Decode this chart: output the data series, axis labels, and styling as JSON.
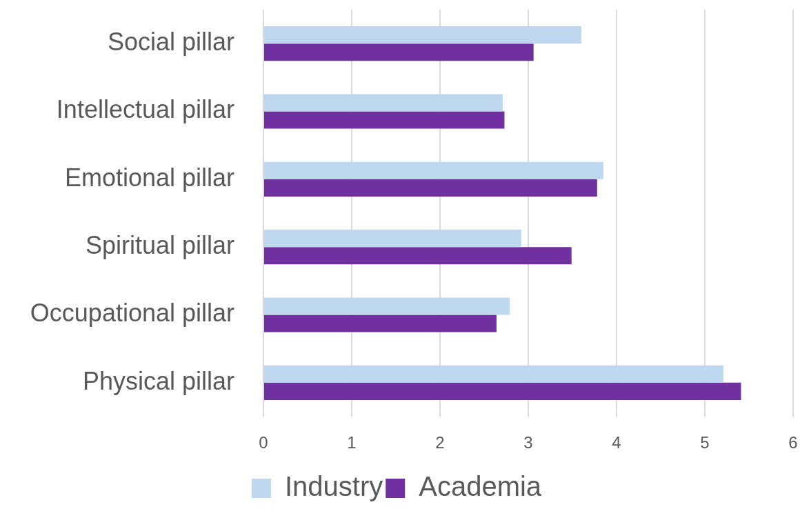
{
  "chart_data": {
    "type": "bar",
    "orientation": "horizontal",
    "categories": [
      "Social pillar",
      "Intellectual pillar",
      "Emotional pillar",
      "Spiritual pillar",
      "Occupational pillar",
      "Physical pillar"
    ],
    "series": [
      {
        "name": "Industry",
        "color": "#bdd7ee",
        "values": [
          3.6,
          2.71,
          3.85,
          2.92,
          2.79,
          5.21
        ]
      },
      {
        "name": "Academia",
        "color": "#7030a0",
        "values": [
          3.06,
          2.73,
          3.78,
          3.49,
          2.64,
          5.41
        ]
      }
    ],
    "xlim": [
      0,
      6
    ],
    "xticks": [
      0,
      1,
      2,
      3,
      4,
      5,
      6
    ],
    "grid": "x",
    "legend": "bottom"
  }
}
